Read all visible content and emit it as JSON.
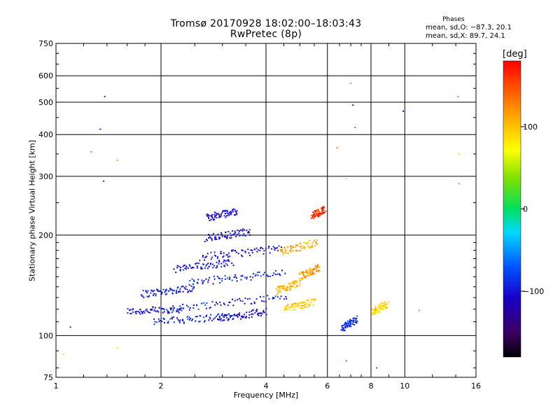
{
  "header": {
    "title_line1": "Tromsø 20170928 18:02:00–18:03:43",
    "title_line2": "RwPretec (8p)",
    "phase_title": "Phases",
    "phase_o": "mean, sd,O: −87.3, 20.1",
    "phase_x": "mean, sd,X:  89.7, 24.1"
  },
  "colors": {
    "background": "#ffffff",
    "grid": "#000000",
    "colormap": [
      "#000000",
      "#3a0060",
      "#1a00c8",
      "#0050ff",
      "#00d8ff",
      "#00e060",
      "#7ae000",
      "#ffff00",
      "#ffa000",
      "#ff0000"
    ]
  },
  "chart_data": {
    "type": "scatter",
    "title": "Tromsø 20170928 18:02:00–18:03:43",
    "subtitle": "RwPretec (8p)",
    "xlabel": "Frequency [MHz]",
    "ylabel": "Stationary phase Virtual Height [km]",
    "x_scale": "log",
    "y_scale": "log",
    "xlim": [
      1,
      16
    ],
    "ylim": [
      75,
      750
    ],
    "x_ticks": [
      "1",
      "2",
      "4",
      "6",
      "8",
      "10",
      "16"
    ],
    "y_ticks": [
      "750",
      "600",
      "500",
      "400",
      "300",
      "200",
      "100",
      "75"
    ],
    "x_tick_values": [
      1,
      2,
      4,
      6,
      8,
      10,
      16
    ],
    "y_tick_values": [
      750,
      600,
      500,
      400,
      300,
      200,
      100,
      75
    ],
    "grid": true,
    "colorbar": {
      "unit": "[deg]",
      "range": [
        -180,
        180
      ],
      "tick_labels": [
        "100",
        "0",
        "−100"
      ],
      "tick_values": [
        100,
        0,
        -100
      ]
    },
    "traces": [
      {
        "freq": [
          1.6,
          2.3
        ],
        "height": [
          118,
          120
        ],
        "phase": -105
      },
      {
        "freq": [
          1.75,
          2.5
        ],
        "height": [
          133,
          139
        ],
        "phase": -100
      },
      {
        "freq": [
          1.9,
          3.2
        ],
        "height": [
          110,
          114
        ],
        "phase": -95
      },
      {
        "freq": [
          2.1,
          4.6
        ],
        "height": [
          120,
          131
        ],
        "phase": -100
      },
      {
        "freq": [
          2.4,
          4.5
        ],
        "height": [
          144,
          154
        ],
        "phase": -98
      },
      {
        "freq": [
          2.2,
          3.2
        ],
        "height": [
          158,
          166
        ],
        "phase": -105
      },
      {
        "freq": [
          2.6,
          4.4
        ],
        "height": [
          172,
          182
        ],
        "phase": -110
      },
      {
        "freq": [
          2.7,
          3.6
        ],
        "height": [
          196,
          205
        ],
        "phase": -108
      },
      {
        "freq": [
          2.7,
          3.3
        ],
        "height": [
          225,
          236
        ],
        "phase": -110
      },
      {
        "freq": [
          2.9,
          4.0
        ],
        "height": [
          112,
          118
        ],
        "phase": -112
      },
      {
        "freq": [
          4.4,
          5.6
        ],
        "height": [
          178,
          190
        ],
        "phase": 130
      },
      {
        "freq": [
          4.3,
          5.0
        ],
        "height": [
          136,
          144
        ],
        "phase": 125
      },
      {
        "freq": [
          4.5,
          5.5
        ],
        "height": [
          120,
          126
        ],
        "phase": 118
      },
      {
        "freq": [
          5.0,
          5.7
        ],
        "height": [
          150,
          160
        ],
        "phase": 140
      },
      {
        "freq": [
          5.4,
          5.9
        ],
        "height": [
          228,
          238
        ],
        "phase": 170
      },
      {
        "freq": [
          6.6,
          7.3
        ],
        "height": [
          105,
          112
        ],
        "phase": -95
      },
      {
        "freq": [
          8.1,
          8.9
        ],
        "height": [
          118,
          124
        ],
        "phase": 110
      }
    ],
    "isolated_points": [
      {
        "freq": 1.38,
        "height": 520,
        "phase": -90
      },
      {
        "freq": 1.34,
        "height": 415,
        "phase": -100
      },
      {
        "freq": 1.26,
        "height": 355,
        "phase": 20
      },
      {
        "freq": 1.5,
        "height": 335,
        "phase": 140
      },
      {
        "freq": 1.37,
        "height": 290,
        "phase": -90
      },
      {
        "freq": 7.0,
        "height": 570,
        "phase": 30
      },
      {
        "freq": 7.1,
        "height": 490,
        "phase": -100
      },
      {
        "freq": 7.2,
        "height": 420,
        "phase": 160
      },
      {
        "freq": 9.9,
        "height": 470,
        "phase": -120
      },
      {
        "freq": 14.2,
        "height": 520,
        "phase": 20
      },
      {
        "freq": 6.4,
        "height": 365,
        "phase": 150
      },
      {
        "freq": 6.8,
        "height": 295,
        "phase": 70
      },
      {
        "freq": 14.3,
        "height": 350,
        "phase": 110
      },
      {
        "freq": 14.3,
        "height": 285,
        "phase": 150
      },
      {
        "freq": 1.05,
        "height": 88,
        "phase": 110
      },
      {
        "freq": 1.5,
        "height": 92,
        "phase": 80
      },
      {
        "freq": 1.1,
        "height": 106,
        "phase": -90
      },
      {
        "freq": 6.8,
        "height": 84,
        "phase": 160
      },
      {
        "freq": 8.3,
        "height": 80,
        "phase": -60
      },
      {
        "freq": 11.0,
        "height": 119,
        "phase": 20
      }
    ]
  }
}
